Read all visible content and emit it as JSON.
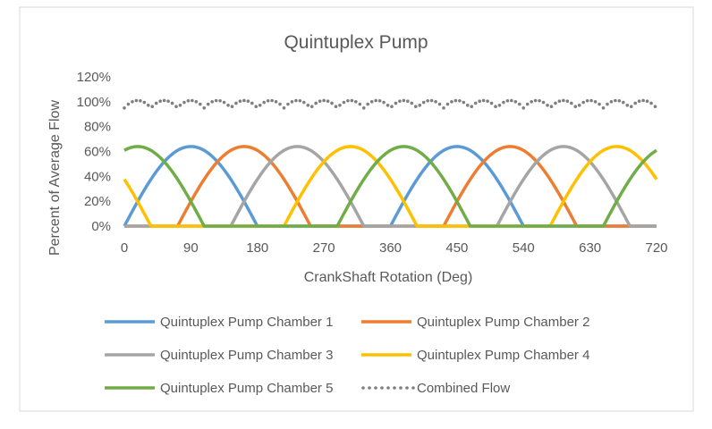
{
  "chart_data": {
    "type": "line",
    "title": "Quintuplex Pump",
    "xlabel": "CrankShaft Rotation (Deg)",
    "ylabel": "Percent of Average Flow",
    "xlim": [
      0,
      720
    ],
    "ylim": [
      0,
      120
    ],
    "x_ticks": [
      "0",
      "90",
      "180",
      "270",
      "360",
      "450",
      "540",
      "630",
      "720"
    ],
    "y_ticks": [
      "0%",
      "20%",
      "40%",
      "60%",
      "80%",
      "100%",
      "120%"
    ],
    "grid": false,
    "legend_position": "bottom",
    "series": [
      {
        "name": "Quintuplex Pump Chamber 1",
        "color": "#5B9BD5",
        "style": "solid",
        "peak": 64,
        "phase_deg": 0
      },
      {
        "name": "Quintuplex Pump Chamber 2",
        "color": "#ED7D31",
        "style": "solid",
        "peak": 64,
        "phase_deg": 72
      },
      {
        "name": "Quintuplex Pump Chamber 3",
        "color": "#A5A5A5",
        "style": "solid",
        "peak": 64,
        "phase_deg": 144
      },
      {
        "name": "Quintuplex Pump Chamber 4",
        "color": "#FFC000",
        "style": "solid",
        "peak": 64,
        "phase_deg": 216
      },
      {
        "name": "Quintuplex Pump Chamber 5",
        "color": "#70AD47",
        "style": "solid",
        "peak": 64,
        "phase_deg": 288
      },
      {
        "name": "Combined Flow",
        "color": "#7F7F7F",
        "style": "dotted",
        "min": 95,
        "max": 101
      }
    ]
  }
}
